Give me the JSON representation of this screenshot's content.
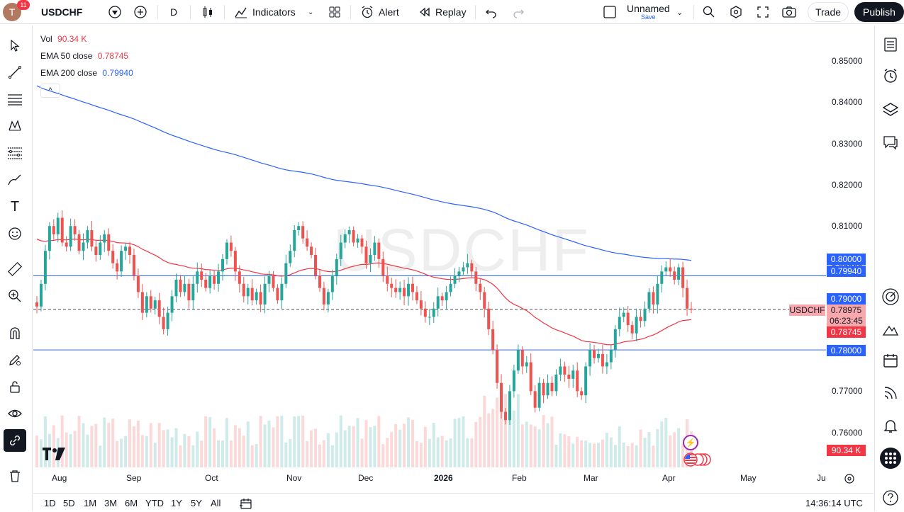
{
  "topbar": {
    "notif_count": "11",
    "avatar_letter": "T",
    "symbol": "USDCHF",
    "interval": "D",
    "indicators_label": "Indicators",
    "alert_label": "Alert",
    "replay_label": "Replay",
    "layout_name": "Unnamed",
    "layout_save": "Save",
    "trade_label": "Trade",
    "publish_label": "Publish"
  },
  "legend": {
    "vol_label": "Vol",
    "vol_value": "90.34 K",
    "ema50_label": "EMA 50 close",
    "ema50_value": "0.78745",
    "ema200_label": "EMA 200 close",
    "ema200_value": "0.79940"
  },
  "watermark": "USDCHF",
  "price_axis": [
    "0.85000",
    "0.84000",
    "0.83000",
    "0.82000",
    "0.81000",
    "0.80000",
    "0.79000",
    "0.78000",
    "0.77000",
    "0.76000"
  ],
  "time_axis": [
    "Aug",
    "Sep",
    "Oct",
    "Nov",
    "Dec",
    "2026",
    "Feb",
    "Mar",
    "Apr",
    "May",
    "Ju"
  ],
  "tags": {
    "level_080": "0.80000",
    "ema200": "0.79940",
    "level_079": "0.79000",
    "symbol_tag": "USDCHF",
    "last_price": "0.78975",
    "countdown": "06:23:45",
    "ema50": "0.78745",
    "level_078": "0.78000",
    "vol_tag": "90.34 K"
  },
  "bottombar": {
    "ranges": [
      "1D",
      "5D",
      "1M",
      "3M",
      "6M",
      "YTD",
      "1Y",
      "5Y",
      "All"
    ],
    "clock": "14:36:14 UTC"
  },
  "colors": {
    "up": "#26a69a",
    "down": "#ef5350",
    "ema50": "#f23645",
    "ema200": "#2962ff",
    "hline": "#2962ff",
    "tag_blue": "#2962ff",
    "tag_red": "#f23645"
  },
  "chart_data": {
    "type": "candlestick",
    "symbol": "USDCHF",
    "interval": "D",
    "last_close": 0.78975,
    "horizontal_lines": [
      0.8,
      0.79,
      0.78
    ],
    "ema50_last": 0.78745,
    "ema200_last": 0.7994,
    "ylim": [
      0.7585,
      0.8535
    ],
    "closes": [
      0.7905,
      0.796,
      0.804,
      0.81,
      0.808,
      0.812,
      0.806,
      0.805,
      0.81,
      0.808,
      0.804,
      0.806,
      0.809,
      0.805,
      0.803,
      0.806,
      0.808,
      0.804,
      0.801,
      0.799,
      0.804,
      0.805,
      0.803,
      0.798,
      0.794,
      0.789,
      0.793,
      0.79,
      0.792,
      0.788,
      0.785,
      0.789,
      0.793,
      0.797,
      0.794,
      0.796,
      0.792,
      0.796,
      0.799,
      0.797,
      0.795,
      0.798,
      0.796,
      0.799,
      0.802,
      0.806,
      0.804,
      0.799,
      0.796,
      0.793,
      0.795,
      0.792,
      0.794,
      0.791,
      0.796,
      0.798,
      0.795,
      0.792,
      0.796,
      0.801,
      0.804,
      0.809,
      0.81,
      0.807,
      0.805,
      0.803,
      0.798,
      0.795,
      0.791,
      0.794,
      0.798,
      0.802,
      0.806,
      0.808,
      0.809,
      0.806,
      0.807,
      0.805,
      0.801,
      0.803,
      0.806,
      0.802,
      0.798,
      0.796,
      0.795,
      0.794,
      0.795,
      0.793,
      0.796,
      0.794,
      0.792,
      0.79,
      0.788,
      0.788,
      0.79,
      0.793,
      0.792,
      0.794,
      0.796,
      0.798,
      0.799,
      0.8,
      0.801,
      0.799,
      0.796,
      0.794,
      0.79,
      0.785,
      0.78,
      0.772,
      0.765,
      0.763,
      0.77,
      0.775,
      0.78,
      0.776,
      0.777,
      0.77,
      0.766,
      0.772,
      0.769,
      0.772,
      0.77,
      0.774,
      0.776,
      0.774,
      0.773,
      0.775,
      0.77,
      0.769,
      0.776,
      0.78,
      0.778,
      0.779,
      0.776,
      0.777,
      0.78,
      0.785,
      0.788,
      0.789,
      0.786,
      0.784,
      0.788,
      0.787,
      0.79,
      0.794,
      0.791,
      0.796,
      0.799,
      0.8,
      0.799,
      0.797,
      0.8,
      0.795,
      0.79,
      0.78975
    ]
  }
}
